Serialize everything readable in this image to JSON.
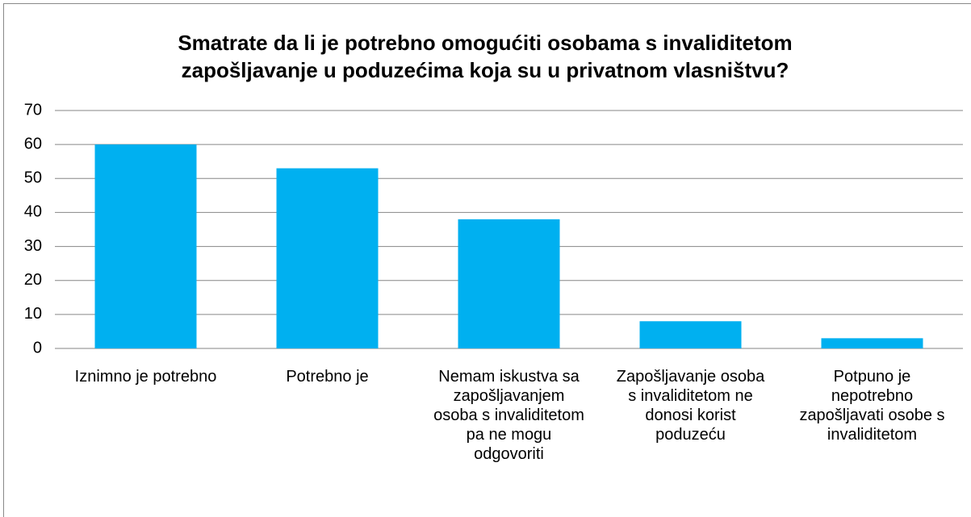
{
  "chart_data": {
    "type": "bar",
    "title": "Smatrate da li je potrebno omogućiti osobama s invaliditetom zapošljavanje u poduzećima koja su u privatnom vlasništvu?",
    "categories": [
      "Iznimno je potrebno",
      "Potrebno je",
      "Nemam iskustva sa zapošljavanjem osoba s invaliditetom pa ne mogu odgovoriti",
      "Zapošljavanje osoba s invaliditetom ne donosi korist poduzeću",
      "Potpuno je nepotrebno zapošljavati osobe s invaliditetom"
    ],
    "values": [
      60,
      53,
      38,
      8,
      3
    ],
    "color": "#00b0f0",
    "ylim": [
      0,
      70
    ],
    "yticks": [
      0,
      10,
      20,
      30,
      40,
      50,
      60,
      70
    ],
    "grid": true
  }
}
